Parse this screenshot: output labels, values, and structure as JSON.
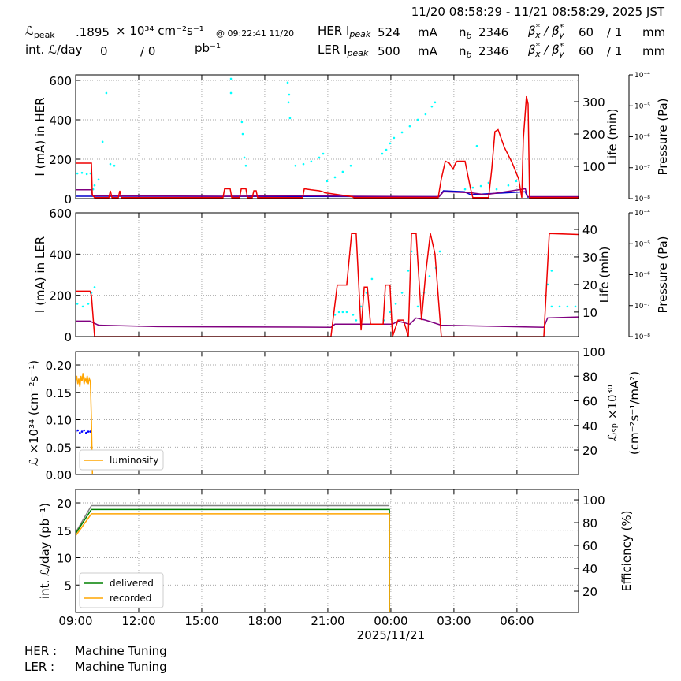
{
  "header": {
    "timespan": "11/20 08:58:29 - 11/21 08:58:29, 2025 JST",
    "lpeak": {
      "symbol": "ℒ",
      "sub": "peak",
      "value": ".1895",
      "unit": "× 10³⁴ cm⁻²s⁻¹",
      "time": "@ 09:22:41 11/20"
    },
    "lint": {
      "label": "int. ℒ/day",
      "delivered": 0,
      "recorded": "/ 0",
      "unit": "pb⁻¹"
    },
    "rings": [
      {
        "label": "HER I",
        "sub": "peak",
        "value": 524,
        "unit": "mA",
        "nb": "n",
        "nb_sub": "b",
        "nb_value": 2346,
        "beta": "β",
        "beta_sup": "*",
        "beta_x": "x",
        "beta_sep": " / β",
        "beta_y": "y",
        "bx": 60,
        "by": "/ 1",
        "beta_unit": "mm"
      },
      {
        "label": "LER I",
        "sub": "peak",
        "value": 500,
        "unit": "mA",
        "nb": "n",
        "nb_sub": "b",
        "nb_value": 2346,
        "beta": "β",
        "beta_sup": "*",
        "beta_x": "x",
        "beta_sep": " / β",
        "beta_y": "y",
        "bx": 60,
        "by": "/ 1",
        "beta_unit": "mm"
      }
    ]
  },
  "chart_data": [
    {
      "type": "line",
      "ylabel": "I (mA) in HER",
      "y2label": "Life (min)",
      "y3label": "Pressure (Pa)",
      "xlim": [
        9,
        32.93
      ],
      "ylim": [
        0,
        628
      ],
      "yticks": [
        0,
        200,
        400,
        600
      ],
      "y2lim": [
        0,
        383
      ],
      "y2ticks": [
        100,
        200,
        300
      ],
      "y3lim": [
        1e-08,
        0.0001
      ],
      "y3scale": "log",
      "y3ticks": [
        {
          "value": 1e-08,
          "label": "10⁻⁸"
        },
        {
          "value": 1e-07,
          "label": "10⁻⁷"
        },
        {
          "value": 1e-06,
          "label": "10⁻⁶"
        },
        {
          "value": 1e-05,
          "label": "10⁻⁵"
        },
        {
          "value": 0.0001,
          "label": "10⁻⁴"
        }
      ],
      "grid": true,
      "series": [
        {
          "type": "scatter",
          "axis": "y2",
          "color": "#00ffff",
          "x": [
            9.08,
            9.3,
            9.53,
            9.71,
            9.83,
            9.9,
            10.09,
            10.28,
            10.46,
            10.65,
            10.84,
            16.39,
            16.39,
            16.91,
            16.95,
            17.03,
            17.1,
            19.09,
            19.13,
            19.16,
            19.2,
            19.46,
            19.84,
            20.21,
            20.59,
            20.78,
            20.96,
            21.34,
            21.71,
            22.09,
            23.59,
            23.78,
            23.96,
            24.15,
            24.53,
            24.9,
            25.28,
            25.65,
            25.95,
            26.1,
            27.53,
            27.9,
            28.09,
            28.28,
            28.65,
            29.03,
            29.59,
            29.96
          ],
          "values": [
            78,
            80,
            76,
            78,
            29,
            41,
            59,
            176,
            327,
            107,
            102,
            327,
            371,
            237,
            200,
            127,
            102,
            359,
            298,
            322,
            249,
            102,
            107,
            115,
            127,
            139,
            54,
            66,
            83,
            102,
            139,
            151,
            171,
            188,
            205,
            224,
            244,
            261,
            285,
            298,
            29,
            34,
            163,
            39,
            49,
            29,
            41,
            54
          ]
        },
        {
          "color": "#0000cc",
          "x": [
            9,
            26.3,
            26.5,
            27.5,
            27.8,
            30.4,
            30.5,
            32.93
          ],
          "values": [
            12,
            10,
            40,
            35,
            20,
            35,
            8,
            8
          ]
        },
        {
          "color": "#800080",
          "x": [
            9,
            9.75,
            9.8,
            16,
            20,
            22.2,
            26.3,
            26.5,
            27.8,
            28.5,
            30.4,
            30.5,
            32.93
          ],
          "values": [
            45,
            45,
            15,
            12,
            15,
            12,
            10,
            35,
            30,
            20,
            50,
            10,
            10
          ]
        },
        {
          "color": "#ee0000",
          "x": [
            9.0,
            9.75,
            9.79,
            9.9,
            10.58,
            10.65,
            10.73,
            11.03,
            11.1,
            11.17,
            16.01,
            16.09,
            16.35,
            16.43,
            16.8,
            16.88,
            17.1,
            17.18,
            17.4,
            17.48,
            17.59,
            17.66,
            19.8,
            19.88,
            20.21,
            20.59,
            20.78,
            20.85,
            22.16,
            22.24,
            26.25,
            26.4,
            26.59,
            26.78,
            26.96,
            27.08,
            27.15,
            27.53,
            27.79,
            27.9,
            28.65,
            28.8,
            28.95,
            29.1,
            29.4,
            29.78,
            30.08,
            30.23,
            30.3,
            30.45,
            30.53,
            30.6,
            32.93
          ],
          "values": [
            180,
            180,
            20,
            5,
            5,
            40,
            5,
            5,
            40,
            5,
            5,
            50,
            50,
            5,
            5,
            50,
            50,
            5,
            5,
            40,
            40,
            5,
            5,
            50,
            45,
            40,
            35,
            30,
            10,
            5,
            5,
            100,
            190,
            180,
            150,
            180,
            190,
            190,
            50,
            5,
            5,
            150,
            340,
            350,
            260,
            180,
            100,
            5,
            300,
            520,
            480,
            5,
            5
          ]
        }
      ]
    },
    {
      "type": "line",
      "ylabel": "I (mA) in LER",
      "y2label": "Life (min)",
      "y3label": "Pressure (Pa)",
      "xlim": [
        9,
        32.93
      ],
      "ylim": [
        0,
        600
      ],
      "yticks": [
        0,
        200,
        400,
        600
      ],
      "y2lim": [
        1.1,
        46
      ],
      "y2ticks": [
        10,
        20,
        30,
        40
      ],
      "y3lim": [
        1e-08,
        0.0001
      ],
      "y3scale": "log",
      "y3ticks": [
        {
          "value": 1e-08,
          "label": "10⁻⁸"
        },
        {
          "value": 1e-07,
          "label": "10⁻⁷"
        },
        {
          "value": 1e-06,
          "label": "10⁻⁶"
        },
        {
          "value": 1e-05,
          "label": "10⁻⁵"
        },
        {
          "value": 0.0001,
          "label": "10⁻⁴"
        }
      ],
      "grid": true,
      "series": [
        {
          "type": "scatter",
          "axis": "y2",
          "color": "#00ffff",
          "x": [
            9.08,
            9.34,
            9.6,
            9.75,
            9.9,
            21.34,
            21.53,
            21.71,
            21.9,
            22.2,
            22.35,
            22.58,
            22.84,
            23.1,
            23.66,
            23.96,
            24.23,
            24.53,
            24.83,
            24.98,
            25.28,
            25.58,
            25.84,
            26.14,
            26.33,
            31.46,
            31.65,
            31.65,
            32.03,
            32.4,
            32.78
          ],
          "values": [
            13,
            12,
            13,
            17,
            19,
            9,
            10,
            10,
            10,
            9,
            7,
            12,
            17,
            22,
            7,
            10,
            13,
            17,
            25,
            32,
            12,
            17,
            23,
            26,
            32,
            20,
            12,
            25,
            12,
            12,
            12
          ]
        },
        {
          "color": "#800080",
          "x": [
            9,
            9.68,
            10.09,
            12.9,
            21.15,
            21.34,
            24.08,
            24.34,
            24.9,
            25.2,
            25.65,
            26.4,
            31.28,
            31.46,
            32.93
          ],
          "values": [
            75,
            75,
            55,
            48,
            45,
            60,
            60,
            75,
            60,
            90,
            80,
            55,
            45,
            90,
            95
          ]
        },
        {
          "color": "#ee0000",
          "x": [
            9.0,
            9.68,
            9.75,
            9.9,
            21.15,
            21.45,
            21.9,
            22.13,
            22.35,
            22.58,
            22.73,
            22.88,
            23.03,
            23.63,
            23.74,
            23.96,
            24.08,
            24.34,
            24.6,
            24.83,
            24.98,
            25.2,
            25.46,
            25.65,
            25.88,
            26.1,
            26.4,
            31.28,
            31.54,
            32.93
          ],
          "values": [
            220,
            220,
            200,
            0,
            0,
            250,
            250,
            500,
            500,
            30,
            240,
            240,
            60,
            60,
            250,
            250,
            0,
            80,
            80,
            0,
            500,
            500,
            80,
            300,
            500,
            400,
            0,
            0,
            500,
            495
          ]
        }
      ]
    },
    {
      "type": "line",
      "ylabel": "ℒ ×10³⁴ (cm⁻²s⁻¹)",
      "y2label": [
        "ℒₛₚ ×10³⁰",
        "(cm⁻²s⁻¹/mA²)"
      ],
      "xlim": [
        9,
        32.93
      ],
      "ylim": [
        0,
        0.2245
      ],
      "yticks": [
        {
          "value": 0,
          "label": "0.00"
        },
        {
          "value": 0.05,
          "label": "0.05"
        },
        {
          "value": 0.1,
          "label": "0.10"
        },
        {
          "value": 0.15,
          "label": "0.15"
        },
        {
          "value": 0.2,
          "label": "0.20"
        }
      ],
      "y2lim": [
        0.2,
        100
      ],
      "y2ticks": [
        20,
        40,
        60,
        80,
        100
      ],
      "grid": true,
      "legend": "lower left",
      "series": [
        {
          "type": "scatter",
          "axis": "y2",
          "color": "#0000ff",
          "x": [
            9.0,
            9.1,
            9.2,
            9.3,
            9.4,
            9.5,
            9.6,
            9.7
          ],
          "values": [
            35,
            36,
            34,
            35,
            36,
            34,
            35,
            35
          ]
        },
        {
          "name": "luminosity",
          "color": "#ffa500",
          "x": [
            9.0,
            9.05,
            9.1,
            9.15,
            9.2,
            9.25,
            9.3,
            9.35,
            9.4,
            9.45,
            9.5,
            9.55,
            9.6,
            9.65,
            9.7,
            9.75,
            9.8,
            32.93
          ],
          "values": [
            0.17,
            0.18,
            0.165,
            0.175,
            0.16,
            0.18,
            0.17,
            0.185,
            0.165,
            0.175,
            0.17,
            0.18,
            0.165,
            0.175,
            0.17,
            0.1,
            0,
            0
          ]
        }
      ]
    },
    {
      "type": "line",
      "ylabel": "int. ℒ/day (pb⁻¹)",
      "y2label": "Efficiency (%)",
      "xlim": [
        9,
        32.93
      ],
      "ylim": [
        0,
        22.45
      ],
      "yticks": [
        5,
        10,
        15,
        20
      ],
      "y2lim": [
        1.4,
        109
      ],
      "y2ticks": [
        20,
        40,
        60,
        80,
        100
      ],
      "xticks": [
        {
          "value": 9,
          "label": "09:00"
        },
        {
          "value": 12,
          "label": "12:00"
        },
        {
          "value": 15,
          "label": "15:00"
        },
        {
          "value": 18,
          "label": "18:00"
        },
        {
          "value": 21,
          "label": "21:00"
        },
        {
          "value": 24,
          "label": "00:00"
        },
        {
          "value": 27,
          "label": "03:00"
        },
        {
          "value": 30,
          "label": "06:00"
        }
      ],
      "xdate": "2025/11/21",
      "grid": true,
      "legend": "lower left",
      "series": [
        {
          "color": "#808080",
          "x": [
            9,
            9.75,
            23.93
          ],
          "values": [
            14.6,
            19.5,
            19.5
          ]
        },
        {
          "name": "delivered",
          "color": "#008000",
          "x": [
            9,
            9.75,
            23.93,
            23.93,
            32.93
          ],
          "values": [
            14.4,
            18.8,
            18.8,
            0,
            0
          ]
        },
        {
          "name": "recorded",
          "color": "#ffa500",
          "x": [
            9,
            9.75,
            23.93,
            23.93,
            32.93
          ],
          "values": [
            14.0,
            18.0,
            18.0,
            0,
            0
          ]
        }
      ]
    }
  ],
  "footer": [
    {
      "ring": "HER :",
      "state": "Machine Tuning"
    },
    {
      "ring": "LER :",
      "state": "Machine Tuning"
    }
  ]
}
